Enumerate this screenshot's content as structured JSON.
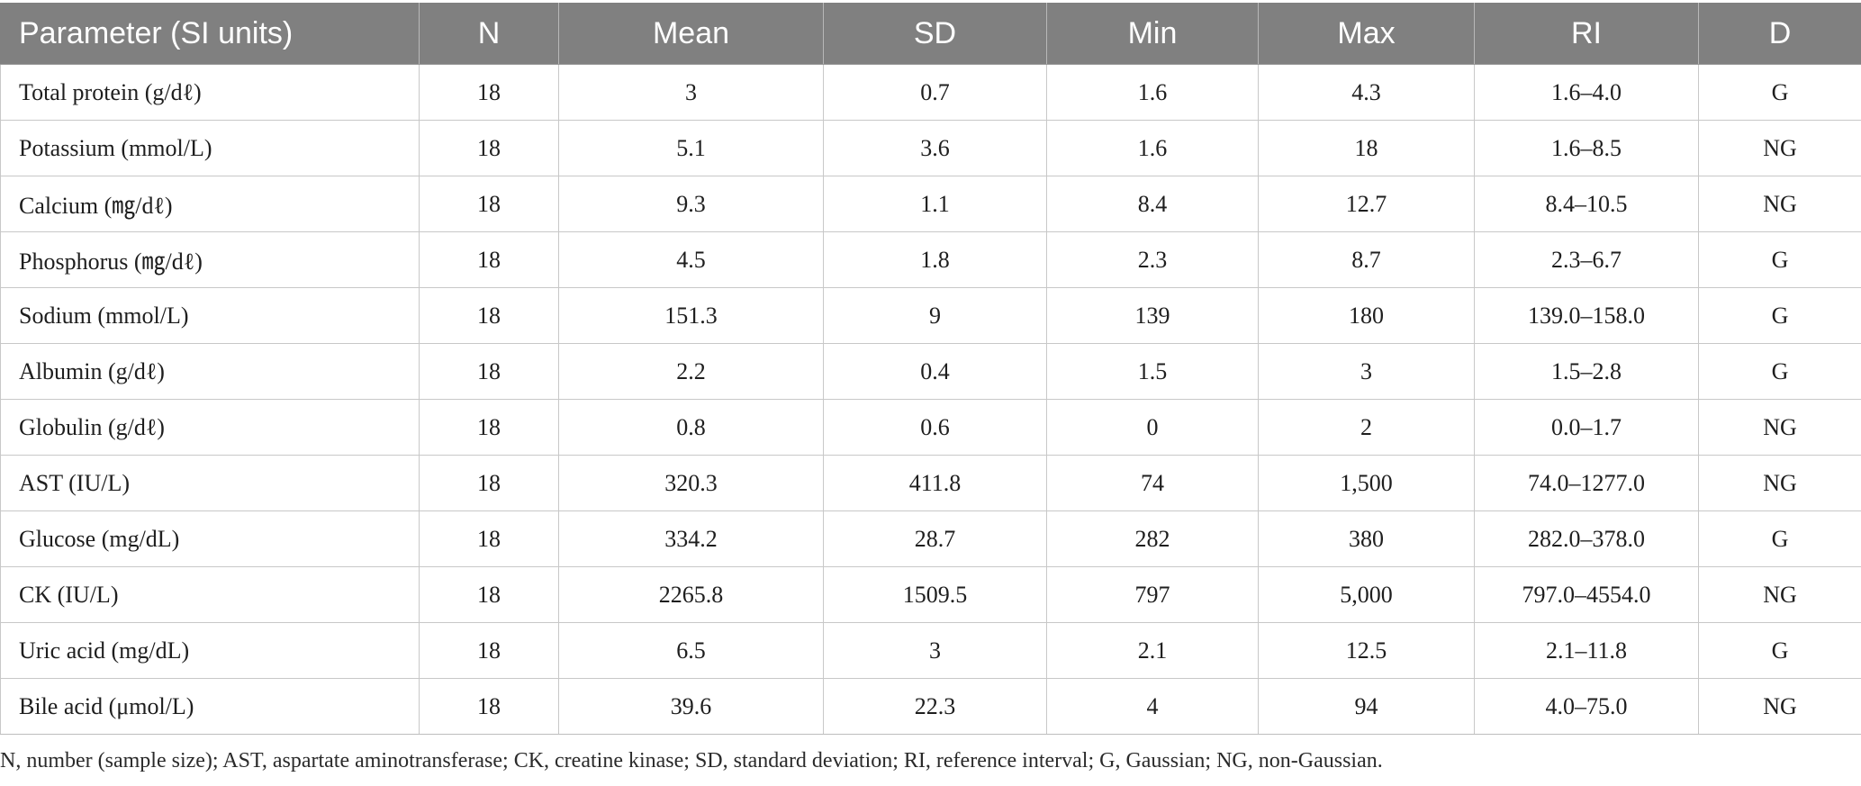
{
  "table": {
    "headers": [
      "Parameter (SI units)",
      "N",
      "Mean",
      "SD",
      "Min",
      "Max",
      "RI",
      "D"
    ],
    "rows": [
      [
        "Total protein (g/dℓ)",
        "18",
        "3",
        "0.7",
        "1.6",
        "4.3",
        "1.6–4.0",
        "G"
      ],
      [
        "Potassium (mmol/L)",
        "18",
        "5.1",
        "3.6",
        "1.6",
        "18",
        "1.6–8.5",
        "NG"
      ],
      [
        "Calcium (㎎/dℓ)",
        "18",
        "9.3",
        "1.1",
        "8.4",
        "12.7",
        "8.4–10.5",
        "NG"
      ],
      [
        "Phosphorus (㎎/dℓ)",
        "18",
        "4.5",
        "1.8",
        "2.3",
        "8.7",
        "2.3–6.7",
        "G"
      ],
      [
        "Sodium (mmol/L)",
        "18",
        "151.3",
        "9",
        "139",
        "180",
        "139.0–158.0",
        "G"
      ],
      [
        "Albumin (g/dℓ)",
        "18",
        "2.2",
        "0.4",
        "1.5",
        "3",
        "1.5–2.8",
        "G"
      ],
      [
        "Globulin (g/dℓ)",
        "18",
        "0.8",
        "0.6",
        "0",
        "2",
        "0.0–1.7",
        "NG"
      ],
      [
        "AST (IU/L)",
        "18",
        "320.3",
        "411.8",
        "74",
        "1,500",
        "74.0–1277.0",
        "NG"
      ],
      [
        "Glucose (mg/dL)",
        "18",
        "334.2",
        "28.7",
        "282",
        "380",
        "282.0–378.0",
        "G"
      ],
      [
        "CK (IU/L)",
        "18",
        "2265.8",
        "1509.5",
        "797",
        "5,000",
        "797.0–4554.0",
        "NG"
      ],
      [
        "Uric acid (mg/dL)",
        "18",
        "6.5",
        "3",
        "2.1",
        "12.5",
        "2.1–11.8",
        "G"
      ],
      [
        "Bile acid (μmol/L)",
        "18",
        "39.6",
        "22.3",
        "4",
        "94",
        "4.0–75.0",
        "NG"
      ]
    ]
  },
  "footnote": "N, number (sample size); AST, aspartate aminotransferase; CK, creatine kinase; SD, standard deviation; RI, reference interval; G, Gaussian; NG, non-Gaussian.",
  "colors": {
    "header_bg": "#808080",
    "header_text": "#ffffff",
    "grid": "#c8c8c8"
  }
}
